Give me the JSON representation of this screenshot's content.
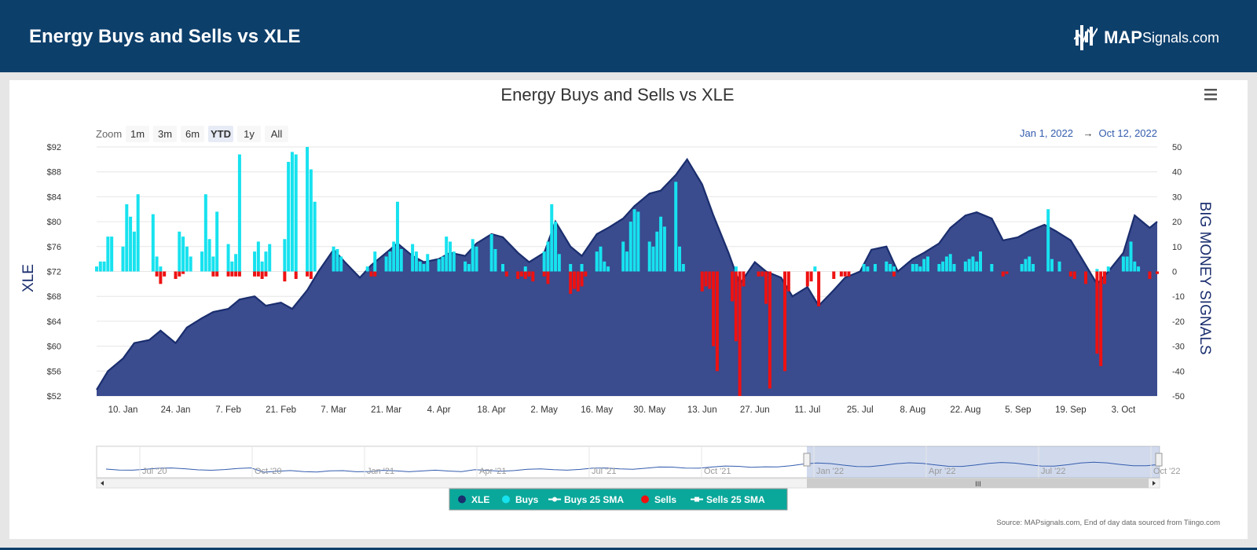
{
  "header": {
    "title": "Energy Buys and Sells vs XLE",
    "brand_bold": "MAP",
    "brand_light": "Signals.com"
  },
  "menu_icon": "hamburger-menu-icon",
  "range_selector": {
    "zoom_label": "Zoom",
    "buttons": [
      "1m",
      "3m",
      "6m",
      "YTD",
      "1y",
      "All"
    ],
    "active": "YTD",
    "from": "Jan 1, 2022",
    "arrow": "→",
    "to": "Oct 12, 2022"
  },
  "navigator": {
    "labels": [
      "Jul '20",
      "Oct '20",
      "Jan '21",
      "Apr '21",
      "Jul '21",
      "Oct '21",
      "Jan '22",
      "Apr '22",
      "Jul '22",
      "Oct '22"
    ]
  },
  "legend": [
    {
      "label": "XLE",
      "color": "#1a2e6e",
      "symbol": "dot"
    },
    {
      "label": "Buys",
      "color": "#17e2ef",
      "symbol": "dot"
    },
    {
      "label": "Buys 25 SMA",
      "color": "#ffffff",
      "symbol": "line"
    },
    {
      "label": "Sells",
      "color": "#ee1111",
      "symbol": "dot"
    },
    {
      "label": "Sells 25 SMA",
      "color": "#ffffff",
      "symbol": "line-square"
    }
  ],
  "source": "Source: MAPsignals.com, End of day data sourced from Tiingo.com",
  "colors": {
    "header_bg": "#0d3f6b",
    "xle_fill": "#3a4b8e",
    "xle_line": "#1a2e6e",
    "buys": "#17e2ef",
    "sells": "#ee1111",
    "legend_bg": "#0aa89b"
  },
  "chart_data": {
    "type": "area",
    "title": "Energy Buys and Sells vs XLE",
    "xlabel": "",
    "ylabel_left": "XLE",
    "ylabel_right": "BIG MONEY SIGNALS",
    "x_ticks": [
      "10. Jan",
      "24. Jan",
      "7. Feb",
      "21. Feb",
      "7. Mar",
      "21. Mar",
      "4. Apr",
      "18. Apr",
      "2. May",
      "16. May",
      "30. May",
      "13. Jun",
      "27. Jun",
      "11. Jul",
      "25. Jul",
      "8. Aug",
      "22. Aug",
      "5. Sep",
      "19. Sep",
      "3. Oct"
    ],
    "y_left_ticks": [
      "$92",
      "$88",
      "$84",
      "$80",
      "$76",
      "$72",
      "$68",
      "$64",
      "$60",
      "$56",
      "$52"
    ],
    "y_left_range": [
      52,
      92
    ],
    "y_right_ticks": [
      "50",
      "40",
      "30",
      "20",
      "10",
      "0",
      "-10",
      "-20",
      "-30",
      "-40",
      "-50"
    ],
    "y_right_range": [
      -50,
      50
    ],
    "xle": {
      "name": "XLE",
      "points": [
        [
          "2022-01-03",
          53.0
        ],
        [
          "2022-01-06",
          56.0
        ],
        [
          "2022-01-10",
          58.0
        ],
        [
          "2022-01-13",
          60.5
        ],
        [
          "2022-01-17",
          61.0
        ],
        [
          "2022-01-20",
          62.5
        ],
        [
          "2022-01-24",
          60.5
        ],
        [
          "2022-01-27",
          63.0
        ],
        [
          "2022-01-31",
          64.5
        ],
        [
          "2022-02-03",
          65.5
        ],
        [
          "2022-02-07",
          66.0
        ],
        [
          "2022-02-10",
          67.5
        ],
        [
          "2022-02-14",
          68.0
        ],
        [
          "2022-02-17",
          66.5
        ],
        [
          "2022-02-21",
          67.0
        ],
        [
          "2022-02-24",
          66.0
        ],
        [
          "2022-02-28",
          69.0
        ],
        [
          "2022-03-03",
          72.0
        ],
        [
          "2022-03-07",
          75.5
        ],
        [
          "2022-03-10",
          73.5
        ],
        [
          "2022-03-14",
          71.0
        ],
        [
          "2022-03-17",
          73.0
        ],
        [
          "2022-03-21",
          75.0
        ],
        [
          "2022-03-24",
          76.5
        ],
        [
          "2022-03-28",
          74.5
        ],
        [
          "2022-03-31",
          73.5
        ],
        [
          "2022-04-04",
          74.0
        ],
        [
          "2022-04-07",
          75.0
        ],
        [
          "2022-04-11",
          74.5
        ],
        [
          "2022-04-14",
          76.5
        ],
        [
          "2022-04-18",
          78.0
        ],
        [
          "2022-04-21",
          77.5
        ],
        [
          "2022-04-25",
          75.0
        ],
        [
          "2022-04-28",
          73.5
        ],
        [
          "2022-05-02",
          75.0
        ],
        [
          "2022-05-05",
          80.0
        ],
        [
          "2022-05-09",
          76.0
        ],
        [
          "2022-05-12",
          74.5
        ],
        [
          "2022-05-16",
          78.0
        ],
        [
          "2022-05-19",
          79.0
        ],
        [
          "2022-05-23",
          80.5
        ],
        [
          "2022-05-26",
          82.5
        ],
        [
          "2022-05-30",
          84.5
        ],
        [
          "2022-06-02",
          85.0
        ],
        [
          "2022-06-06",
          87.5
        ],
        [
          "2022-06-09",
          90.0
        ],
        [
          "2022-06-13",
          86.0
        ],
        [
          "2022-06-16",
          81.0
        ],
        [
          "2022-06-20",
          75.0
        ],
        [
          "2022-06-23",
          70.0
        ],
        [
          "2022-06-27",
          73.5
        ],
        [
          "2022-06-30",
          72.0
        ],
        [
          "2022-07-04",
          71.0
        ],
        [
          "2022-07-07",
          68.0
        ],
        [
          "2022-07-11",
          69.5
        ],
        [
          "2022-07-14",
          66.5
        ],
        [
          "2022-07-18",
          69.0
        ],
        [
          "2022-07-21",
          71.0
        ],
        [
          "2022-07-25",
          72.0
        ],
        [
          "2022-07-28",
          75.5
        ],
        [
          "2022-08-01",
          76.0
        ],
        [
          "2022-08-04",
          72.0
        ],
        [
          "2022-08-08",
          74.0
        ],
        [
          "2022-08-11",
          75.0
        ],
        [
          "2022-08-15",
          76.5
        ],
        [
          "2022-08-18",
          79.0
        ],
        [
          "2022-08-22",
          81.0
        ],
        [
          "2022-08-25",
          81.5
        ],
        [
          "2022-08-29",
          80.5
        ],
        [
          "2022-09-01",
          77.0
        ],
        [
          "2022-09-05",
          77.5
        ],
        [
          "2022-09-08",
          78.5
        ],
        [
          "2022-09-12",
          79.5
        ],
        [
          "2022-09-15",
          78.5
        ],
        [
          "2022-09-19",
          77.0
        ],
        [
          "2022-09-22",
          74.0
        ],
        [
          "2022-09-26",
          70.0
        ],
        [
          "2022-09-29",
          72.0
        ],
        [
          "2022-10-03",
          75.0
        ],
        [
          "2022-10-06",
          81.0
        ],
        [
          "2022-10-10",
          79.0
        ],
        [
          "2022-10-12",
          80.0
        ]
      ]
    },
    "buys": {
      "name": "Buys",
      "points": [
        [
          "2022-01-03",
          2
        ],
        [
          "2022-01-04",
          4
        ],
        [
          "2022-01-05",
          4
        ],
        [
          "2022-01-06",
          14
        ],
        [
          "2022-01-07",
          14
        ],
        [
          "2022-01-10",
          10
        ],
        [
          "2022-01-11",
          27
        ],
        [
          "2022-01-12",
          22
        ],
        [
          "2022-01-13",
          16
        ],
        [
          "2022-01-14",
          31
        ],
        [
          "2022-01-18",
          23
        ],
        [
          "2022-01-19",
          6
        ],
        [
          "2022-01-20",
          2
        ],
        [
          "2022-01-25",
          16
        ],
        [
          "2022-01-26",
          14
        ],
        [
          "2022-01-27",
          10
        ],
        [
          "2022-01-28",
          6
        ],
        [
          "2022-01-31",
          8
        ],
        [
          "2022-02-01",
          31
        ],
        [
          "2022-02-02",
          13
        ],
        [
          "2022-02-03",
          6
        ],
        [
          "2022-02-04",
          24
        ],
        [
          "2022-02-07",
          11
        ],
        [
          "2022-02-08",
          4
        ],
        [
          "2022-02-09",
          7
        ],
        [
          "2022-02-10",
          47
        ],
        [
          "2022-02-14",
          8
        ],
        [
          "2022-02-15",
          12
        ],
        [
          "2022-02-16",
          4
        ],
        [
          "2022-02-17",
          8
        ],
        [
          "2022-02-18",
          11
        ],
        [
          "2022-02-22",
          13
        ],
        [
          "2022-02-23",
          44
        ],
        [
          "2022-02-24",
          48
        ],
        [
          "2022-02-25",
          47
        ],
        [
          "2022-02-28",
          50
        ],
        [
          "2022-03-01",
          41
        ],
        [
          "2022-03-02",
          28
        ],
        [
          "2022-03-07",
          10
        ],
        [
          "2022-03-08",
          9
        ],
        [
          "2022-03-09",
          6
        ],
        [
          "2022-03-16",
          2
        ],
        [
          "2022-03-18",
          8
        ],
        [
          "2022-03-21",
          6
        ],
        [
          "2022-03-22",
          8
        ],
        [
          "2022-03-23",
          12
        ],
        [
          "2022-03-24",
          28
        ],
        [
          "2022-03-25",
          9
        ],
        [
          "2022-03-28",
          11
        ],
        [
          "2022-03-29",
          8
        ],
        [
          "2022-03-30",
          4
        ],
        [
          "2022-03-31",
          3
        ],
        [
          "2022-04-01",
          7
        ],
        [
          "2022-04-04",
          5
        ],
        [
          "2022-04-05",
          6
        ],
        [
          "2022-04-06",
          14
        ],
        [
          "2022-04-07",
          12
        ],
        [
          "2022-04-08",
          8
        ],
        [
          "2022-04-11",
          4
        ],
        [
          "2022-04-12",
          3
        ],
        [
          "2022-04-13",
          13
        ],
        [
          "2022-04-14",
          10
        ],
        [
          "2022-04-18",
          15
        ],
        [
          "2022-04-19",
          9
        ],
        [
          "2022-04-21",
          3
        ],
        [
          "2022-04-27",
          2
        ],
        [
          "2022-05-02",
          8
        ],
        [
          "2022-05-03",
          12
        ],
        [
          "2022-05-04",
          27
        ],
        [
          "2022-05-05",
          20
        ],
        [
          "2022-05-06",
          7
        ],
        [
          "2022-05-09",
          3
        ],
        [
          "2022-05-12",
          3
        ],
        [
          "2022-05-16",
          8
        ],
        [
          "2022-05-17",
          10
        ],
        [
          "2022-05-18",
          4
        ],
        [
          "2022-05-19",
          2
        ],
        [
          "2022-05-23",
          12
        ],
        [
          "2022-05-24",
          8
        ],
        [
          "2022-05-25",
          20
        ],
        [
          "2022-05-26",
          25
        ],
        [
          "2022-05-27",
          24
        ],
        [
          "2022-05-30",
          12
        ],
        [
          "2022-05-31",
          10
        ],
        [
          "2022-06-01",
          16
        ],
        [
          "2022-06-02",
          22
        ],
        [
          "2022-06-03",
          18
        ],
        [
          "2022-06-06",
          36
        ],
        [
          "2022-06-07",
          10
        ],
        [
          "2022-06-08",
          3
        ],
        [
          "2022-06-22",
          2
        ],
        [
          "2022-07-13",
          2
        ],
        [
          "2022-07-26",
          3
        ],
        [
          "2022-07-27",
          2
        ],
        [
          "2022-07-29",
          3
        ],
        [
          "2022-08-01",
          4
        ],
        [
          "2022-08-02",
          3
        ],
        [
          "2022-08-03",
          2
        ],
        [
          "2022-08-08",
          3
        ],
        [
          "2022-08-09",
          3
        ],
        [
          "2022-08-10",
          2
        ],
        [
          "2022-08-11",
          5
        ],
        [
          "2022-08-12",
          6
        ],
        [
          "2022-08-15",
          3
        ],
        [
          "2022-08-16",
          4
        ],
        [
          "2022-08-17",
          6
        ],
        [
          "2022-08-18",
          7
        ],
        [
          "2022-08-19",
          3
        ],
        [
          "2022-08-22",
          4
        ],
        [
          "2022-08-23",
          5
        ],
        [
          "2022-08-24",
          6
        ],
        [
          "2022-08-25",
          4
        ],
        [
          "2022-08-26",
          8
        ],
        [
          "2022-08-29",
          3
        ],
        [
          "2022-09-06",
          3
        ],
        [
          "2022-09-07",
          5
        ],
        [
          "2022-09-08",
          6
        ],
        [
          "2022-09-09",
          3
        ],
        [
          "2022-09-13",
          25
        ],
        [
          "2022-09-14",
          5
        ],
        [
          "2022-09-16",
          4
        ],
        [
          "2022-09-26",
          1
        ],
        [
          "2022-09-29",
          2
        ],
        [
          "2022-10-03",
          6
        ],
        [
          "2022-10-04",
          6
        ],
        [
          "2022-10-05",
          12
        ],
        [
          "2022-10-06",
          4
        ],
        [
          "2022-10-07",
          2
        ]
      ]
    },
    "sells": {
      "name": "Sells",
      "points": [
        [
          "2022-01-19",
          -2
        ],
        [
          "2022-01-20",
          -5
        ],
        [
          "2022-01-21",
          -2
        ],
        [
          "2022-01-24",
          -3
        ],
        [
          "2022-01-25",
          -2
        ],
        [
          "2022-01-26",
          -1
        ],
        [
          "2022-02-03",
          -2
        ],
        [
          "2022-02-04",
          -2
        ],
        [
          "2022-02-07",
          -2
        ],
        [
          "2022-02-08",
          -2
        ],
        [
          "2022-02-09",
          -2
        ],
        [
          "2022-02-10",
          -2
        ],
        [
          "2022-02-14",
          -2
        ],
        [
          "2022-02-15",
          -2
        ],
        [
          "2022-02-16",
          -3
        ],
        [
          "2022-02-17",
          -2
        ],
        [
          "2022-02-22",
          -4
        ],
        [
          "2022-02-25",
          -3
        ],
        [
          "2022-02-28",
          -2
        ],
        [
          "2022-03-01",
          -3
        ],
        [
          "2022-03-17",
          -2
        ],
        [
          "2022-03-18",
          -2
        ],
        [
          "2022-04-22",
          -2
        ],
        [
          "2022-04-25",
          -3
        ],
        [
          "2022-04-26",
          -2
        ],
        [
          "2022-04-27",
          -3
        ],
        [
          "2022-04-28",
          -2
        ],
        [
          "2022-04-29",
          -4
        ],
        [
          "2022-05-02",
          -2
        ],
        [
          "2022-05-03",
          -5
        ],
        [
          "2022-05-09",
          -9
        ],
        [
          "2022-05-10",
          -7
        ],
        [
          "2022-05-11",
          -8
        ],
        [
          "2022-05-12",
          -6
        ],
        [
          "2022-05-13",
          -2
        ],
        [
          "2022-06-13",
          -8
        ],
        [
          "2022-06-14",
          -6
        ],
        [
          "2022-06-15",
          -7
        ],
        [
          "2022-06-16",
          -30
        ],
        [
          "2022-06-17",
          -40
        ],
        [
          "2022-06-21",
          -12
        ],
        [
          "2022-06-22",
          -28
        ],
        [
          "2022-06-23",
          -50
        ],
        [
          "2022-06-24",
          -6
        ],
        [
          "2022-06-28",
          -2
        ],
        [
          "2022-06-29",
          -2
        ],
        [
          "2022-06-30",
          -13
        ],
        [
          "2022-07-01",
          -47
        ],
        [
          "2022-07-05",
          -40
        ],
        [
          "2022-07-06",
          -8
        ],
        [
          "2022-07-11",
          -6
        ],
        [
          "2022-07-12",
          -4
        ],
        [
          "2022-07-14",
          -14
        ],
        [
          "2022-07-18",
          -3
        ],
        [
          "2022-07-20",
          -2
        ],
        [
          "2022-07-21",
          -2
        ],
        [
          "2022-07-22",
          -2
        ],
        [
          "2022-08-03",
          -2
        ],
        [
          "2022-09-01",
          -2
        ],
        [
          "2022-09-02",
          -1
        ],
        [
          "2022-09-19",
          -2
        ],
        [
          "2022-09-20",
          -3
        ],
        [
          "2022-09-23",
          -5
        ],
        [
          "2022-09-26",
          -33
        ],
        [
          "2022-09-27",
          -38
        ],
        [
          "2022-09-28",
          -5
        ],
        [
          "2022-10-10",
          -3
        ],
        [
          "2022-10-12",
          -1
        ]
      ]
    },
    "legend_placement": "bottom-center",
    "grid": true
  }
}
